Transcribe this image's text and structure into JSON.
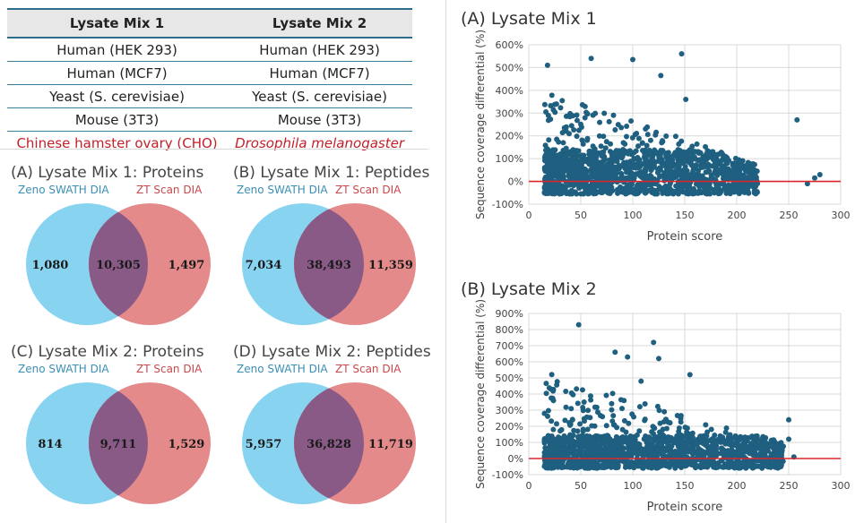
{
  "table": {
    "headers": [
      "Lysate Mix 1",
      "Lysate Mix 2"
    ],
    "rows": [
      [
        "Human (HEK 293)",
        "Human (HEK 293)"
      ],
      [
        "Human (MCF7)",
        "Human (MCF7)"
      ],
      [
        "Yeast (S. cerevisiae)",
        "Yeast (S. cerevisiae)"
      ],
      [
        "Mouse (3T3)",
        "Mouse (3T3)"
      ],
      [
        "Chinese hamster ovary (CHO)",
        "Drosophila melanogaster"
      ]
    ]
  },
  "venns": [
    {
      "title": "(A) Lysate Mix 1: Proteins",
      "label_a": "Zeno SWATH DIA",
      "label_b": "ZT Scan DIA",
      "only_a": "1,080",
      "overlap": "10,305",
      "only_b": "1,497"
    },
    {
      "title": "(B) Lysate Mix 1: Peptides",
      "label_a": "Zeno SWATH DIA",
      "label_b": "ZT Scan DIA",
      "only_a": "7,034",
      "overlap": "38,493",
      "only_b": "11,359"
    },
    {
      "title": "(C) Lysate Mix 2: Proteins",
      "label_a": "Zeno SWATH DIA",
      "label_b": "ZT Scan DIA",
      "only_a": "814",
      "overlap": "9,711",
      "only_b": "1,529"
    },
    {
      "title": "(D) Lysate Mix 2: Peptides",
      "label_a": "Zeno SWATH DIA",
      "label_b": "ZT Scan DIA",
      "only_a": "5,957",
      "overlap": "36,828",
      "only_b": "11,719"
    }
  ],
  "colors": {
    "venn_a": "#87d3f0",
    "venn_b": "#e48a8a",
    "venn_overlap": "#8a5a86",
    "points": "#1f5f80",
    "zero_line": "#d8262c",
    "table_red": "#c3202a",
    "table_rule": "#2d6c8a"
  },
  "chart_data": [
    {
      "type": "scatter",
      "title": "(A) Lysate Mix 1",
      "xlabel": "Protein score",
      "ylabel": "Sequence coverage differential (%)",
      "xlim": [
        0,
        300
      ],
      "ylim": [
        -100,
        600
      ],
      "xticks": [
        "0",
        "50",
        "100",
        "150",
        "200",
        "250",
        "300"
      ],
      "yticks": [
        "-100%",
        "0%",
        "100%",
        "200%",
        "300%",
        "400%",
        "500%",
        "600%"
      ],
      "grid": true,
      "reference_line_y": 0,
      "highlight_points": [
        [
          18,
          510
        ],
        [
          60,
          540
        ],
        [
          100,
          535
        ],
        [
          127,
          465
        ],
        [
          147,
          560
        ],
        [
          151,
          360
        ],
        [
          258,
          270
        ],
        [
          280,
          30
        ],
        [
          275,
          15
        ],
        [
          268,
          -10
        ]
      ],
      "cloud": {
        "x_min": 15,
        "x_max": 220,
        "y_min": -55,
        "y_max": 400
      }
    },
    {
      "type": "scatter",
      "title": "(B) Lysate Mix 2",
      "xlabel": "Protein score",
      "ylabel": "Sequence coverage differential (%)",
      "xlim": [
        0,
        300
      ],
      "ylim": [
        -100,
        900
      ],
      "xticks": [
        "0",
        "50",
        "100",
        "150",
        "200",
        "250",
        "300"
      ],
      "yticks": [
        "-100%",
        "0%",
        "100%",
        "200%",
        "300%",
        "400%",
        "500%",
        "600%",
        "700%",
        "800%",
        "900%"
      ],
      "grid": true,
      "reference_line_y": 0,
      "highlight_points": [
        [
          48,
          830
        ],
        [
          120,
          720
        ],
        [
          83,
          660
        ],
        [
          125,
          620
        ],
        [
          95,
          630
        ],
        [
          108,
          480
        ],
        [
          155,
          520
        ],
        [
          250,
          240
        ],
        [
          255,
          10
        ],
        [
          250,
          120
        ]
      ],
      "cloud": {
        "x_min": 15,
        "x_max": 245,
        "y_min": -60,
        "y_max": 540
      }
    }
  ]
}
